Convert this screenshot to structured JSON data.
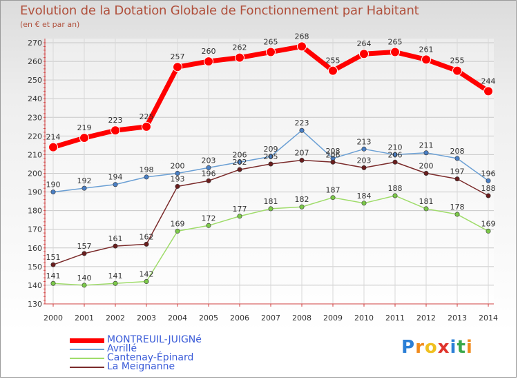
{
  "header": {
    "title": "Evolution de la Dotation Globale de Fonctionnement par Habitant",
    "subtitle": "(en € et par an)"
  },
  "brand": {
    "letters": [
      "P",
      "r",
      "o",
      "x",
      "i",
      "t",
      "i"
    ],
    "colors": [
      "#2b7fd6",
      "#f08a1c",
      "#f0c020",
      "#e0342c",
      "#2b7fd6",
      "#3aa84a",
      "#f08a1c"
    ]
  },
  "chart_data": {
    "type": "line",
    "title": "Evolution de la Dotation Globale de Fonctionnement par Habitant",
    "subtitle": "(en € et par an)",
    "xlabel": "",
    "ylabel": "",
    "x": [
      "2000",
      "2001",
      "2002",
      "2003",
      "2004",
      "2005",
      "2006",
      "2007",
      "2008",
      "2009",
      "2010",
      "2011",
      "2012",
      "2013",
      "2014"
    ],
    "ylim": [
      130,
      270
    ],
    "yticks": [
      130,
      140,
      150,
      160,
      170,
      180,
      190,
      200,
      210,
      220,
      230,
      240,
      250,
      260,
      270
    ],
    "grid": true,
    "legend_position": "bottom-left",
    "series": [
      {
        "name": "MONTREUIL-JUIGNé",
        "values": [
          214,
          219,
          223,
          225,
          257,
          260,
          262,
          265,
          268,
          255,
          264,
          265,
          261,
          255,
          244
        ],
        "color": "#ff0000",
        "marker": "#ff0000",
        "emphasis": true
      },
      {
        "name": "Avrillé",
        "values": [
          190,
          192,
          194,
          198,
          200,
          203,
          206,
          209,
          223,
          208,
          213,
          210,
          211,
          208,
          196
        ],
        "color": "#6a9fd4",
        "marker": "#4a7fc4"
      },
      {
        "name": "Cantenay-Épinard",
        "values": [
          141,
          140,
          141,
          142,
          169,
          172,
          177,
          181,
          182,
          187,
          184,
          188,
          181,
          178,
          169
        ],
        "color": "#9fdc6a",
        "marker": "#7cc94a"
      },
      {
        "name": "La Meignanne",
        "values": [
          151,
          157,
          161,
          162,
          193,
          196,
          202,
          205,
          207,
          206,
          203,
          206,
          200,
          197,
          188
        ],
        "color": "#7a2a2a",
        "marker": "#6a1e1e"
      }
    ]
  }
}
